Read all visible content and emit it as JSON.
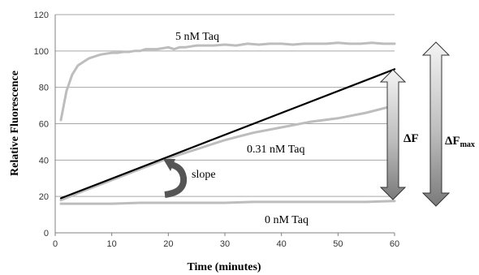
{
  "chart_data": {
    "type": "line",
    "xlabel": "Time (minutes)",
    "ylabel": "Relative Fluorescence",
    "xlim": [
      0,
      60
    ],
    "ylim": [
      0,
      120
    ],
    "xticks": [
      0,
      10,
      20,
      30,
      40,
      50,
      60
    ],
    "yticks": [
      0,
      20,
      40,
      60,
      80,
      100,
      120
    ],
    "grid": "horizontal",
    "series": [
      {
        "name": "5 nM Taq",
        "color": "#bdbdbd",
        "x": [
          1,
          2,
          3,
          4,
          5,
          6,
          7,
          8,
          9,
          10,
          11,
          12,
          13,
          14,
          15,
          16,
          17,
          18,
          19,
          20,
          21,
          22,
          23,
          24,
          25,
          26,
          28,
          30,
          32,
          34,
          36,
          38,
          40,
          42,
          44,
          46,
          48,
          50,
          52,
          54,
          56,
          58,
          60
        ],
        "y": [
          62,
          78,
          87,
          92,
          94,
          96,
          97,
          98,
          98.5,
          99,
          99,
          99.5,
          99.5,
          100,
          100,
          101,
          101,
          101,
          101.5,
          102,
          101,
          102,
          102,
          102.5,
          103,
          103,
          103,
          103.5,
          103,
          104,
          103.5,
          104,
          104,
          103.5,
          104,
          104,
          104,
          104.5,
          104,
          104,
          104.5,
          104,
          104
        ]
      },
      {
        "name": "0.31 nM Taq",
        "color": "#bdbdbd",
        "x": [
          1,
          5,
          10,
          15,
          20,
          25,
          30,
          35,
          40,
          45,
          50,
          55,
          60
        ],
        "y": [
          18,
          23,
          29,
          35,
          41,
          46,
          51,
          55,
          58,
          61,
          63,
          66,
          70
        ]
      },
      {
        "name": "0 nM Taq",
        "color": "#bdbdbd",
        "x": [
          1,
          5,
          10,
          15,
          20,
          25,
          30,
          35,
          40,
          45,
          50,
          55,
          60
        ],
        "y": [
          16,
          16,
          16,
          16.5,
          16.5,
          16.5,
          16.5,
          17,
          17,
          17,
          17,
          17,
          17.5
        ]
      },
      {
        "color": "#000000",
        "x": [
          1,
          60
        ],
        "y": [
          19,
          90
        ]
      }
    ],
    "annotations": {
      "label_5nm": "5 nM Taq",
      "label_031nm": "0.31 nM Taq",
      "label_0nm": "0 nM Taq",
      "slope": "slope",
      "delta_f": "ΔF",
      "delta_fmax_main": "ΔF",
      "delta_fmax_sub": "max"
    }
  }
}
